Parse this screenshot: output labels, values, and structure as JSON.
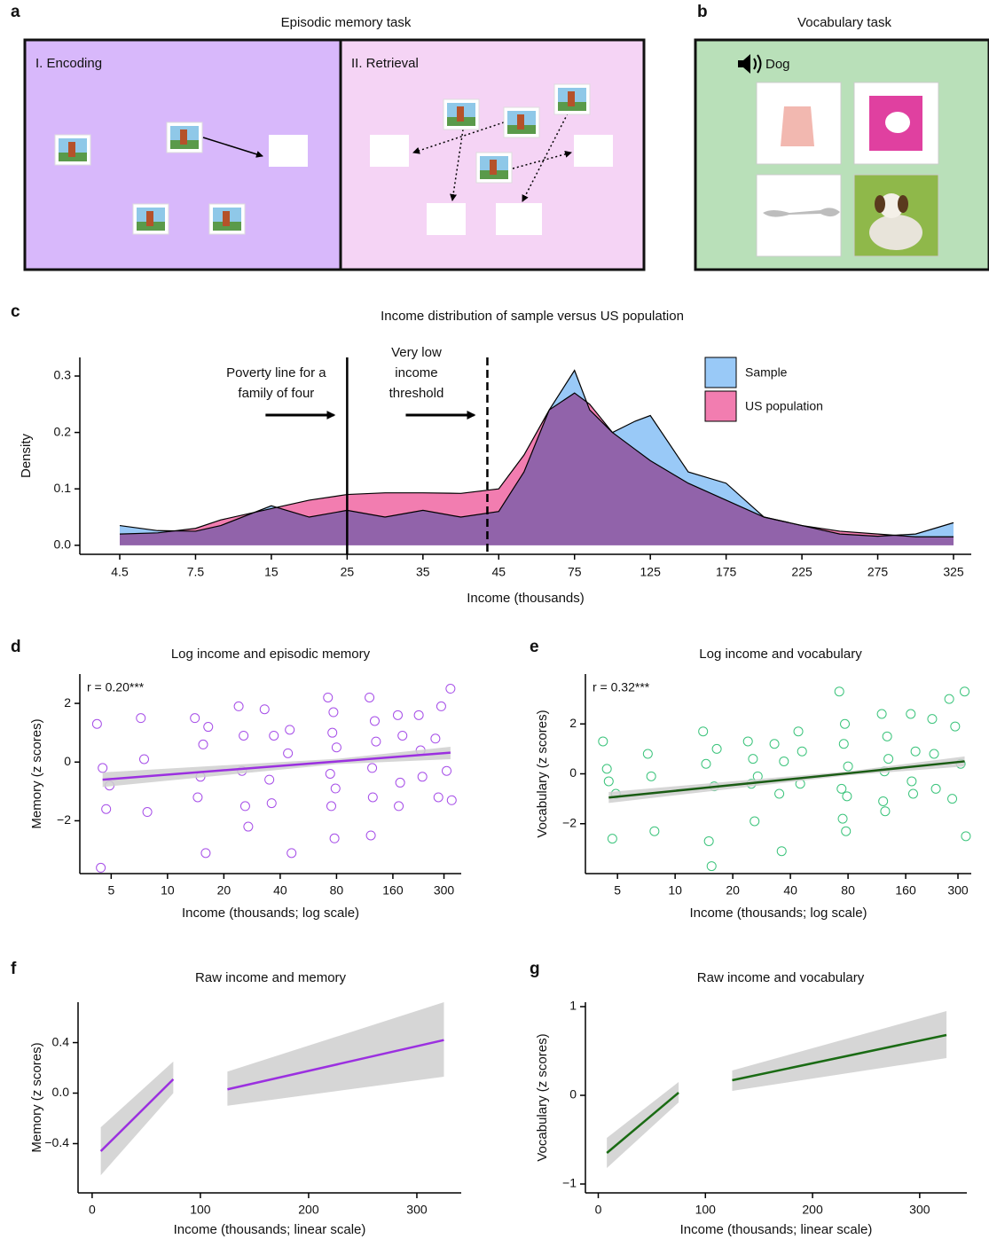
{
  "panel_a": {
    "label": "a",
    "title": "Episodic memory task",
    "encoding": "I. Encoding",
    "retrieval": "II. Retrieval"
  },
  "panel_b": {
    "label": "b",
    "title": "Vocabulary task",
    "word": "Dog"
  },
  "chart_data": [
    {
      "panel_label": "c",
      "type": "area",
      "title": "Income distribution of sample versus US population",
      "xlabel": "Income (thousands)",
      "ylabel": "Density",
      "x": [
        4.5,
        6,
        7.5,
        10,
        15,
        20,
        25,
        30,
        35,
        40,
        45,
        55,
        65,
        75,
        85,
        100,
        115,
        125,
        150,
        175,
        200,
        225,
        250,
        275,
        300,
        325
      ],
      "series": [
        {
          "name": "Sample",
          "color": "#99c9f7",
          "values": [
            0.035,
            0.026,
            0.025,
            0.035,
            0.07,
            0.05,
            0.062,
            0.05,
            0.062,
            0.05,
            0.06,
            0.13,
            0.24,
            0.31,
            0.24,
            0.2,
            0.22,
            0.23,
            0.13,
            0.11,
            0.05,
            0.035,
            0.02,
            0.016,
            0.02,
            0.04
          ]
        },
        {
          "name": "US population",
          "color": "#f27db0",
          "values": [
            0.02,
            0.022,
            0.03,
            0.045,
            0.065,
            0.08,
            0.09,
            0.093,
            0.093,
            0.092,
            0.1,
            0.16,
            0.24,
            0.27,
            0.25,
            0.2,
            0.17,
            0.15,
            0.11,
            0.08,
            0.05,
            0.035,
            0.025,
            0.02,
            0.015,
            0.015
          ]
        }
      ],
      "xticks": [
        4.5,
        7.5,
        15,
        25,
        35,
        45,
        75,
        125,
        175,
        225,
        275,
        325
      ],
      "ylim": [
        -0.016,
        0.333
      ],
      "yticks": [
        {
          "value": 0,
          "label": "0.0"
        },
        0.1,
        0.2,
        0.3
      ],
      "legend": "upper right",
      "annotations": [
        {
          "text": [
            "Poverty line for a",
            "family of four"
          ],
          "x": 25,
          "style": "solid"
        },
        {
          "text": [
            "Very low",
            "income",
            "threshold"
          ],
          "x": 43.5,
          "style": "dashed"
        }
      ]
    },
    {
      "panel_label": "d",
      "type": "scatter",
      "title": "Log income and episodic memory",
      "xlabel": "Income (thousands; log scale)",
      "ylabel": "Memory (z scores)",
      "annotation": "r = 0.20***",
      "color": "#a64ee8",
      "xscale": "log",
      "xlim": [
        3.4,
        371
      ],
      "xticks": [
        5,
        10,
        20,
        40,
        80,
        160,
        300
      ],
      "ylim": [
        -3.8,
        3.0
      ],
      "yticks": [
        {
          "value": -2,
          "label": "−2"
        },
        0,
        2
      ],
      "x": [
        4.5,
        4.7,
        4.2,
        4.9,
        4.4,
        7.5,
        7.2,
        7.8,
        14,
        15,
        16,
        15.5,
        14.5,
        16.5,
        24,
        25,
        26,
        25.5,
        27,
        33,
        35,
        37,
        36,
        44,
        45,
        46,
        72,
        74,
        76,
        78,
        80,
        75,
        77,
        79,
        120,
        125,
        130,
        122,
        128,
        124,
        170,
        175,
        180,
        172,
        220,
        230,
        225,
        270,
        280,
        290,
        310,
        325,
        330
      ],
      "values": [
        -0.2,
        -1.6,
        1.3,
        -0.8,
        -3.6,
        0.1,
        1.5,
        -1.7,
        1.5,
        -0.5,
        -3.1,
        0.6,
        -1.2,
        1.2,
        1.9,
        -0.3,
        -1.5,
        0.9,
        -2.2,
        1.8,
        -0.6,
        0.9,
        -1.4,
        0.3,
        1.1,
        -3.1,
        2.2,
        -0.4,
        1.0,
        -2.6,
        0.5,
        -1.5,
        1.7,
        -0.9,
        2.2,
        -1.2,
        0.7,
        -2.5,
        1.4,
        -0.2,
        1.6,
        -0.7,
        0.9,
        -1.5,
        1.6,
        -0.5,
        0.4,
        0.8,
        -1.2,
        1.9,
        -0.3,
        2.5,
        -1.3
      ],
      "fit": {
        "color": "#9b30e0",
        "x": [
          4.5,
          80,
          325
        ],
        "values": [
          -0.6,
          0.02,
          0.32
        ],
        "lower": [
          -0.85,
          -0.07,
          0.1
        ],
        "upper": [
          -0.35,
          0.11,
          0.52
        ]
      }
    },
    {
      "panel_label": "e",
      "type": "scatter",
      "title": "Log income and vocabulary",
      "xlabel": "Income (thousands; log scale)",
      "ylabel": "Vocabulary (z scores)",
      "annotation": "r = 0.32***",
      "color": "#3cc47c",
      "xscale": "log",
      "xlim": [
        3.4,
        352
      ],
      "xticks": [
        5,
        10,
        20,
        40,
        80,
        160,
        300
      ],
      "ylim": [
        -4,
        4
      ],
      "yticks": [
        {
          "value": -2,
          "label": "−2"
        },
        0,
        2
      ],
      "x": [
        4.5,
        4.7,
        4.2,
        4.9,
        4.4,
        7.5,
        7.2,
        7.8,
        14,
        15,
        16,
        15.5,
        14.5,
        16.5,
        24,
        25,
        26,
        25.5,
        27,
        33,
        35,
        37,
        36,
        44,
        45,
        46,
        72,
        74,
        76,
        78,
        80,
        75,
        77,
        79,
        120,
        125,
        130,
        122,
        128,
        124,
        170,
        175,
        180,
        172,
        220,
        230,
        225,
        270,
        280,
        290,
        310,
        325,
        330
      ],
      "values": [
        -0.3,
        -2.6,
        1.3,
        -0.8,
        0.2,
        -0.1,
        0.8,
        -2.3,
        1.7,
        -2.7,
        -0.5,
        -3.7,
        0.4,
        1.0,
        1.3,
        -0.4,
        -1.9,
        0.6,
        -0.1,
        1.2,
        -0.8,
        0.5,
        -3.1,
        1.7,
        -0.4,
        0.9,
        3.3,
        -0.6,
        1.2,
        -2.3,
        0.3,
        -1.8,
        2.0,
        -0.9,
        2.4,
        -1.5,
        0.6,
        -1.1,
        1.5,
        0.1,
        2.4,
        -0.8,
        0.9,
        -0.3,
        2.2,
        -0.6,
        0.8,
        3.0,
        -1.0,
        1.9,
        0.4,
        3.3,
        -2.5
      ],
      "fit": {
        "color": "#1a5c14",
        "x": [
          4.5,
          80,
          325
        ],
        "values": [
          -0.95,
          0.02,
          0.5
        ],
        "lower": [
          -1.17,
          -0.06,
          0.3
        ],
        "upper": [
          -0.73,
          0.1,
          0.7
        ]
      }
    },
    {
      "panel_label": "f",
      "type": "line",
      "title": "Raw income and memory",
      "xlabel": "Income (thousands; linear scale)",
      "ylabel": "Memory (z scores)",
      "color": "#9b30e0",
      "xlim": [
        -13,
        341
      ],
      "xticks": [
        0,
        100,
        200,
        300
      ],
      "ylim": [
        -0.79,
        0.72
      ],
      "yticks": [
        {
          "value": -0.4,
          "label": "−0.4"
        },
        {
          "value": 0,
          "label": "0.0"
        },
        0.4
      ],
      "x": [
        8,
        75,
        null,
        125,
        325
      ],
      "values": [
        -0.46,
        0.11,
        null,
        0.03,
        0.42
      ],
      "lower": [
        -0.65,
        0.0,
        null,
        -0.1,
        0.13
      ],
      "upper": [
        -0.27,
        0.25,
        null,
        0.17,
        0.72
      ]
    },
    {
      "panel_label": "g",
      "type": "line",
      "title": "Raw income and vocabulary",
      "xlabel": "Income (thousands; linear scale)",
      "ylabel": "Vocabulary (z scores)",
      "color": "#1a6b14",
      "xlim": [
        -12,
        344
      ],
      "xticks": [
        0,
        100,
        200,
        300
      ],
      "ylim": [
        -1.1,
        1.05
      ],
      "yticks": [
        {
          "value": -1,
          "label": "−1"
        },
        0,
        1
      ],
      "x": [
        8,
        75,
        null,
        125,
        325
      ],
      "values": [
        -0.65,
        0.03,
        null,
        0.17,
        0.68
      ],
      "lower": [
        -0.82,
        -0.08,
        null,
        0.05,
        0.42
      ],
      "upper": [
        -0.48,
        0.15,
        null,
        0.28,
        0.95
      ]
    }
  ]
}
